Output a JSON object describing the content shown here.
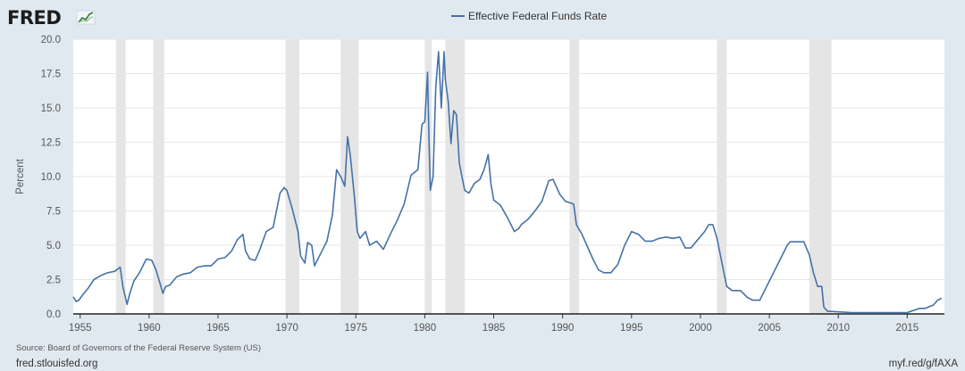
{
  "brand": {
    "logo_text": "FRED",
    "logo_icon": "chart-line-icon"
  },
  "colors": {
    "line": "#4572a7",
    "plot_bg": "#ffffff",
    "page_bg": "#e1e9f0",
    "recession": "#e5e5e5",
    "grid": "#e6e6e6"
  },
  "footer": {
    "source": "Source: Board of Governors of the Federal Reserve System (US)",
    "site": "fred.stlouisfed.org",
    "short_url": "myf.red/g/fAXA"
  },
  "chart_data": {
    "type": "line",
    "title": "",
    "xlabel": "",
    "ylabel": "Percent",
    "legend_position": "top-center",
    "grid": true,
    "xlim": [
      1954.5,
      2017.7
    ],
    "ylim": [
      0,
      20
    ],
    "y_ticks": [
      "0.0",
      "2.5",
      "5.0",
      "7.5",
      "10.0",
      "12.5",
      "15.0",
      "17.5",
      "20.0"
    ],
    "x_ticks": [
      "1955",
      "1960",
      "1965",
      "1970",
      "1975",
      "1980",
      "1985",
      "1990",
      "1995",
      "2000",
      "2005",
      "2010",
      "2015"
    ],
    "recessions": [
      [
        1957.6,
        1958.3
      ],
      [
        1960.3,
        1961.1
      ],
      [
        1969.9,
        1970.9
      ],
      [
        1973.9,
        1975.2
      ],
      [
        1980.0,
        1980.5
      ],
      [
        1981.5,
        1982.9
      ],
      [
        1990.5,
        1991.2
      ],
      [
        2001.2,
        2001.9
      ],
      [
        2007.9,
        2009.5
      ]
    ],
    "series": [
      {
        "name": "Effective Federal Funds Rate",
        "x": [
          1954.5,
          1954.7,
          1954.9,
          1955.2,
          1955.6,
          1956.0,
          1956.5,
          1957.0,
          1957.5,
          1957.9,
          1958.1,
          1958.4,
          1958.6,
          1958.9,
          1959.3,
          1959.8,
          1960.2,
          1960.5,
          1960.8,
          1961.0,
          1961.2,
          1961.5,
          1962.0,
          1962.5,
          1963.0,
          1963.5,
          1964.0,
          1964.5,
          1965.0,
          1965.5,
          1966.0,
          1966.4,
          1966.8,
          1967.0,
          1967.3,
          1967.7,
          1968.0,
          1968.5,
          1969.0,
          1969.5,
          1969.8,
          1970.0,
          1970.4,
          1970.8,
          1971.0,
          1971.3,
          1971.5,
          1971.8,
          1972.0,
          1972.5,
          1972.9,
          1973.3,
          1973.6,
          1973.9,
          1974.2,
          1974.4,
          1974.6,
          1974.9,
          1975.1,
          1975.3,
          1975.7,
          1976.0,
          1976.5,
          1977.0,
          1977.5,
          1978.0,
          1978.5,
          1979.0,
          1979.5,
          1979.8,
          1980.0,
          1980.2,
          1980.3,
          1980.4,
          1980.6,
          1980.8,
          1981.0,
          1981.2,
          1981.4,
          1981.5,
          1981.7,
          1981.9,
          1982.1,
          1982.3,
          1982.5,
          1982.7,
          1982.9,
          1983.2,
          1983.6,
          1984.0,
          1984.3,
          1984.6,
          1984.8,
          1985.0,
          1985.5,
          1986.0,
          1986.5,
          1986.8,
          1987.0,
          1987.5,
          1988.0,
          1988.5,
          1989.0,
          1989.3,
          1989.8,
          1990.2,
          1990.8,
          1991.0,
          1991.4,
          1991.8,
          1992.2,
          1992.6,
          1993.0,
          1993.5,
          1994.0,
          1994.5,
          1995.0,
          1995.5,
          1996.0,
          1996.5,
          1997.0,
          1997.5,
          1998.0,
          1998.5,
          1998.9,
          1999.3,
          1999.8,
          2000.3,
          2000.6,
          2000.9,
          2001.2,
          2001.5,
          2001.9,
          2002.3,
          2002.9,
          2003.4,
          2003.8,
          2004.3,
          2004.8,
          2005.3,
          2005.8,
          2006.3,
          2006.5,
          2007.0,
          2007.5,
          2007.9,
          2008.2,
          2008.5,
          2008.8,
          2008.95,
          2009.2,
          2010.0,
          2011.0,
          2012.0,
          2013.0,
          2014.0,
          2015.0,
          2015.9,
          2016.3,
          2016.9,
          2017.2,
          2017.5
        ],
        "values": [
          1.25,
          0.9,
          1.0,
          1.4,
          1.9,
          2.5,
          2.8,
          3.0,
          3.1,
          3.4,
          2.0,
          0.7,
          1.5,
          2.4,
          3.0,
          4.0,
          3.9,
          3.2,
          2.2,
          1.5,
          2.0,
          2.1,
          2.7,
          2.9,
          3.0,
          3.4,
          3.5,
          3.5,
          4.0,
          4.1,
          4.6,
          5.4,
          5.8,
          4.6,
          4.0,
          3.9,
          4.6,
          6.0,
          6.3,
          8.8,
          9.2,
          9.0,
          7.6,
          6.0,
          4.2,
          3.7,
          5.2,
          5.0,
          3.5,
          4.5,
          5.3,
          7.2,
          10.5,
          10.0,
          9.3,
          12.9,
          11.5,
          8.5,
          6.0,
          5.5,
          6.0,
          5.0,
          5.3,
          4.7,
          5.8,
          6.8,
          8.0,
          10.1,
          10.5,
          13.8,
          14.0,
          17.6,
          13.0,
          9.0,
          10.0,
          16.5,
          19.1,
          15.0,
          19.1,
          17.0,
          15.5,
          12.4,
          14.8,
          14.5,
          11.0,
          10.0,
          9.0,
          8.8,
          9.5,
          9.8,
          10.5,
          11.6,
          9.5,
          8.3,
          7.9,
          7.0,
          6.0,
          6.2,
          6.5,
          6.9,
          7.5,
          8.2,
          9.7,
          9.8,
          8.7,
          8.2,
          8.0,
          6.5,
          5.8,
          4.9,
          4.0,
          3.2,
          3.0,
          3.0,
          3.6,
          5.0,
          6.0,
          5.8,
          5.3,
          5.3,
          5.5,
          5.6,
          5.5,
          5.6,
          4.8,
          4.8,
          5.4,
          6.0,
          6.5,
          6.5,
          5.5,
          4.0,
          2.0,
          1.7,
          1.7,
          1.2,
          1.0,
          1.0,
          2.0,
          3.0,
          4.0,
          5.0,
          5.25,
          5.25,
          5.25,
          4.3,
          3.0,
          2.0,
          2.0,
          0.5,
          0.2,
          0.15,
          0.1,
          0.1,
          0.1,
          0.1,
          0.1,
          0.4,
          0.4,
          0.65,
          1.0,
          1.15
        ]
      }
    ]
  }
}
